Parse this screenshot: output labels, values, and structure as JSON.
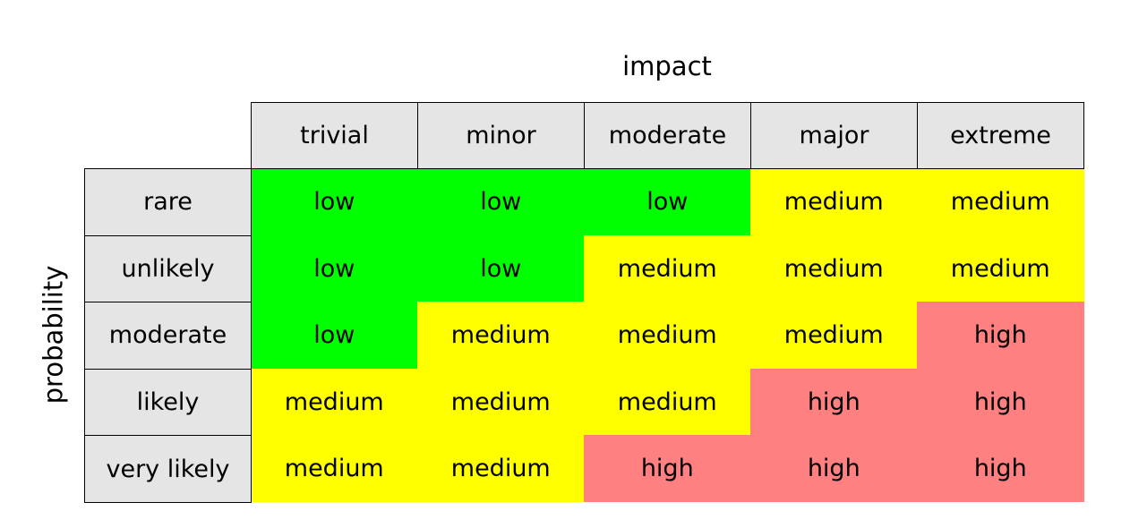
{
  "x_axis_title": "impact",
  "y_axis_title": "probability",
  "columns": [
    "trivial",
    "minor",
    "moderate",
    "major",
    "extreme"
  ],
  "rows": [
    "rare",
    "unlikely",
    "moderate",
    "likely",
    "very likely"
  ],
  "colors": {
    "low": "#00ff00",
    "medium": "#ffff00",
    "high": "#ff8080",
    "header": "#e5e5e5"
  },
  "matrix": [
    [
      "low",
      "low",
      "low",
      "medium",
      "medium"
    ],
    [
      "low",
      "low",
      "medium",
      "medium",
      "medium"
    ],
    [
      "low",
      "medium",
      "medium",
      "medium",
      "high"
    ],
    [
      "medium",
      "medium",
      "medium",
      "high",
      "high"
    ],
    [
      "medium",
      "medium",
      "high",
      "high",
      "high"
    ]
  ]
}
